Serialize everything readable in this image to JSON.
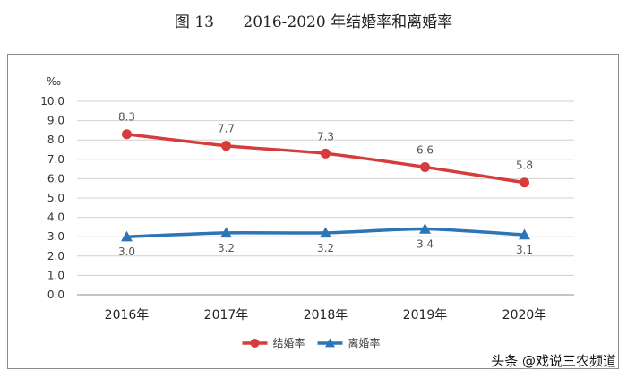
{
  "title_prefix": "图 13",
  "title_text": "2016-2020 年结婚率和离婚率",
  "watermark": "头条 @戏说三农频道",
  "chart_data": {
    "type": "line",
    "unit_label": "‰",
    "categories": [
      "2016年",
      "2017年",
      "2018年",
      "2019年",
      "2020年"
    ],
    "ylim": [
      0,
      10
    ],
    "yticks": [
      "0.0",
      "1.0",
      "2.0",
      "3.0",
      "4.0",
      "5.0",
      "6.0",
      "7.0",
      "8.0",
      "9.0",
      "10.0"
    ],
    "grid": true,
    "legend_position": "bottom",
    "series": [
      {
        "name": "结婚率",
        "values": [
          8.3,
          7.7,
          7.3,
          6.6,
          5.8
        ],
        "labels": [
          "8.3",
          "7.7",
          "7.3",
          "6.6",
          "5.8"
        ],
        "color": "#d63c3c",
        "marker": "circle",
        "label_position": "above"
      },
      {
        "name": "离婚率",
        "values": [
          3.0,
          3.2,
          3.2,
          3.4,
          3.1
        ],
        "labels": [
          "3.0",
          "3.2",
          "3.2",
          "3.4",
          "3.1"
        ],
        "color": "#2e75b6",
        "marker": "triangle",
        "label_position": "below"
      }
    ]
  }
}
